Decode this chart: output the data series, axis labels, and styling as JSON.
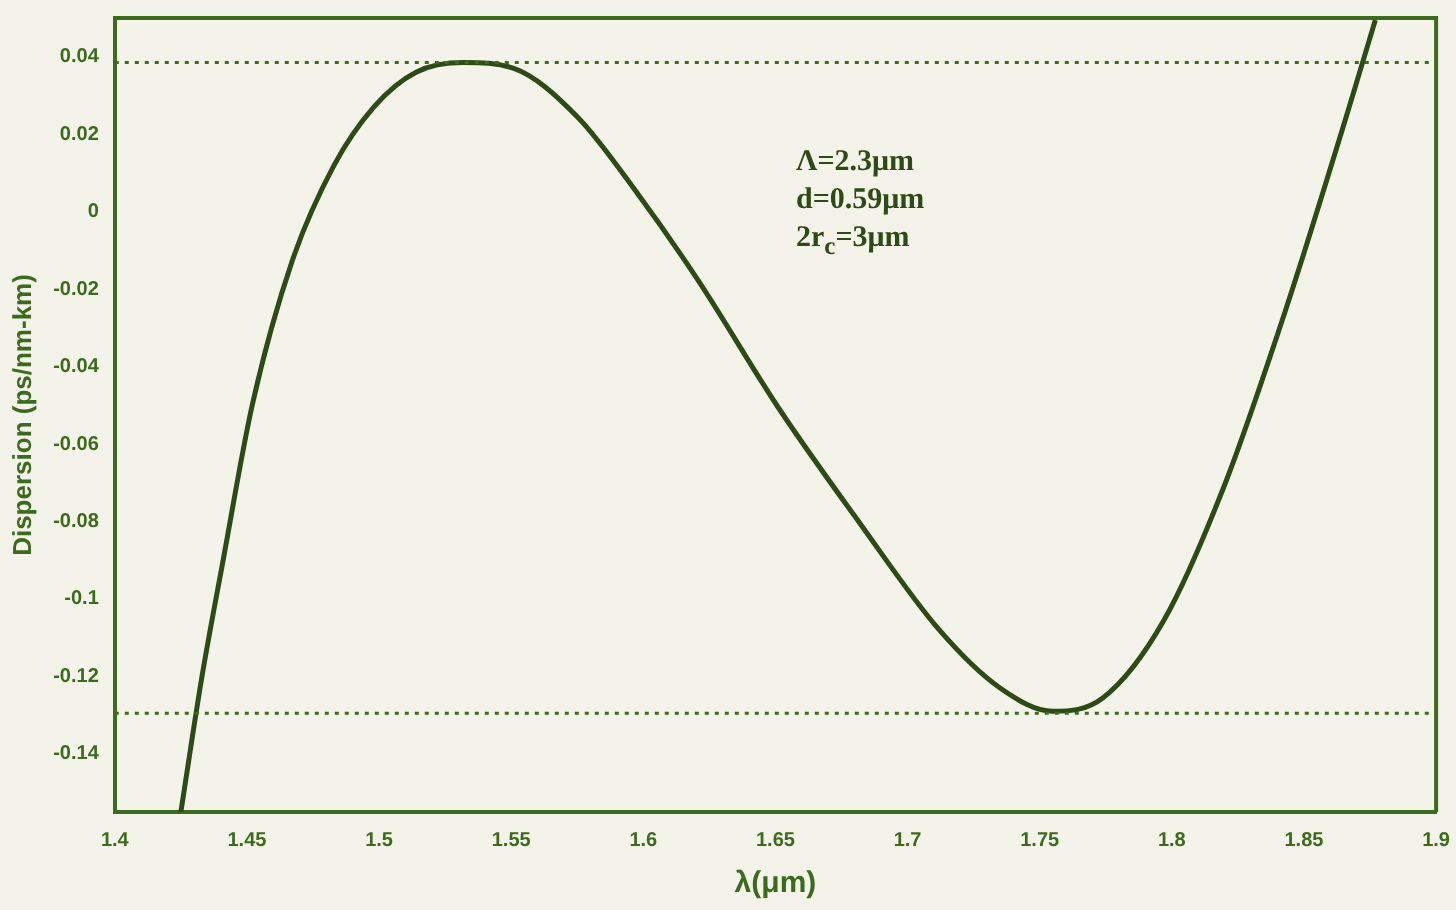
{
  "chart_data": {
    "type": "line",
    "xlabel": "λ(μm)",
    "ylabel": "Dispersion (ps/nm-km)",
    "annotations": [
      "Λ=2.3μm",
      "d=0.59μm",
      "2r$_{c}$=3μm"
    ],
    "series": [
      {
        "color": "#2e4a16",
        "x": [
          1.425,
          1.433,
          1.441,
          1.452,
          1.467,
          1.483,
          1.498,
          1.514,
          1.532,
          1.551,
          1.575,
          1.598,
          1.621,
          1.651,
          1.682,
          1.712,
          1.735,
          1.755,
          1.774,
          1.797,
          1.82,
          1.843,
          1.866,
          1.877
        ],
        "values": [
          -0.155,
          -0.12,
          -0.09,
          -0.05,
          -0.013,
          0.012,
          0.027,
          0.036,
          0.0385,
          0.037,
          0.0245,
          0.0045,
          -0.018,
          -0.0505,
          -0.0805,
          -0.108,
          -0.123,
          -0.129,
          -0.1255,
          -0.1055,
          -0.0705,
          -0.0255,
          0.0245,
          0.0495
        ]
      }
    ],
    "xlim": [
      1.4,
      1.9
    ],
    "xticks": [
      1.4,
      1.45,
      1.5,
      1.55,
      1.6,
      1.65,
      1.7,
      1.75,
      1.8,
      1.85,
      1.9
    ],
    "ylim": [
      -0.155,
      0.05
    ],
    "yticks": [
      -0.14,
      -0.12,
      -0.1,
      -0.08,
      -0.06,
      -0.04,
      -0.02,
      0,
      0.02,
      0.04
    ],
    "ref_lines": [
      {
        "axis": "y",
        "value": 0.0385,
        "color": "#3d6b1e",
        "line_style": "dotted"
      },
      {
        "axis": "y",
        "value": -0.1295,
        "color": "#3d6b1e",
        "line_style": "dotted"
      }
    ],
    "grid": false,
    "legend": false,
    "marker": "none",
    "line_style": "solid"
  }
}
